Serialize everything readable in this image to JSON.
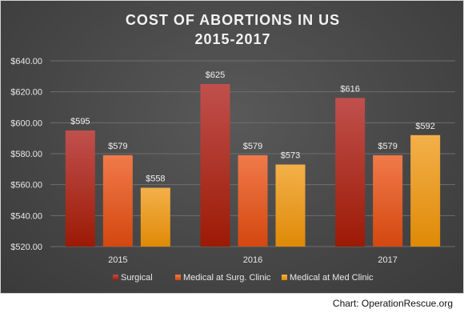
{
  "chart_data": {
    "type": "bar",
    "title": [
      "COST OF ABORTIONS IN US",
      "2015-2017"
    ],
    "categories": [
      "2015",
      "2016",
      "2017"
    ],
    "series": [
      {
        "name": "Surgical",
        "values": [
          595,
          625,
          616
        ],
        "labels": [
          "$595",
          "$625",
          "$616"
        ]
      },
      {
        "name": "Medical at Surg. Clinic",
        "values": [
          579,
          579,
          579
        ],
        "labels": [
          "$579",
          "$579",
          "$579"
        ]
      },
      {
        "name": "Medical at Med Clinic",
        "values": [
          558,
          573,
          592
        ],
        "labels": [
          "$558",
          "$573",
          "$592"
        ]
      }
    ],
    "ylim": [
      520,
      640
    ],
    "yticks": [
      520,
      540,
      560,
      580,
      600,
      620,
      640
    ],
    "ytick_labels": [
      "$520.00",
      "$540.00",
      "$560.00",
      "$580.00",
      "$600.00",
      "$620.00",
      "$640.00"
    ],
    "grid": true,
    "legend_position": "bottom",
    "colors": {
      "Surgical": [
        "#c0504d",
        "#9c1a05"
      ],
      "Medical at Surg. Clinic": [
        "#f07a4a",
        "#d4470f"
      ],
      "Medical at Med Clinic": [
        "#f3b04a",
        "#df8a06"
      ]
    }
  },
  "source": "Chart: OperationRescue.org"
}
